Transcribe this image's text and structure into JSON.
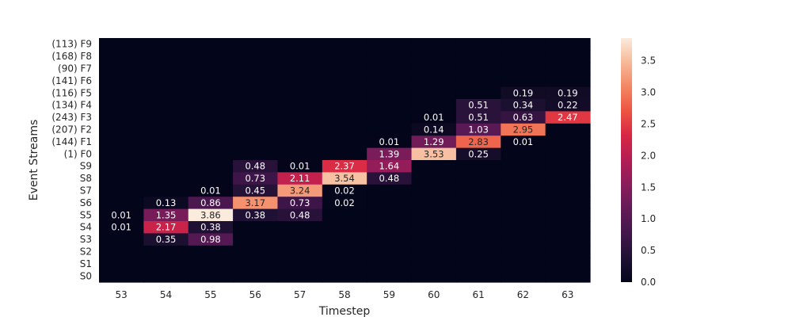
{
  "chart_data": {
    "type": "heatmap",
    "xlabel": "Timestep",
    "ylabel": "Event Streams",
    "x_categories": [
      "53",
      "54",
      "55",
      "56",
      "57",
      "58",
      "59",
      "60",
      "61",
      "62",
      "63"
    ],
    "y_categories": [
      "(113) F9",
      "(168) F8",
      "(90) F7",
      "(141) F6",
      "(116) F5",
      "(134) F4",
      "(243) F3",
      "(207) F2",
      "(144) F1",
      "(1) F0",
      "S9",
      "S8",
      "S7",
      "S6",
      "S5",
      "S4",
      "S3",
      "S2",
      "S1",
      "S0"
    ],
    "values": [
      [
        0,
        0,
        0,
        0,
        0,
        0,
        0,
        0,
        0,
        0,
        0
      ],
      [
        0,
        0,
        0,
        0,
        0,
        0,
        0,
        0,
        0,
        0,
        0
      ],
      [
        0,
        0,
        0,
        0,
        0,
        0,
        0,
        0,
        0,
        0,
        0
      ],
      [
        0,
        0,
        0,
        0,
        0,
        0,
        0,
        0,
        0,
        0,
        0
      ],
      [
        0,
        0,
        0,
        0,
        0,
        0,
        0,
        0,
        0,
        0.19,
        0.19
      ],
      [
        0,
        0,
        0,
        0,
        0,
        0,
        0,
        0,
        0.51,
        0.34,
        0.22
      ],
      [
        0,
        0,
        0,
        0,
        0,
        0,
        0,
        0.01,
        0.51,
        0.63,
        2.47
      ],
      [
        0,
        0,
        0,
        0,
        0,
        0,
        0,
        0.14,
        1.03,
        2.95,
        0
      ],
      [
        0,
        0,
        0,
        0,
        0,
        0,
        0.01,
        1.29,
        2.83,
        0.01,
        0
      ],
      [
        0,
        0,
        0,
        0,
        0,
        0,
        1.39,
        3.53,
        0.25,
        0,
        0
      ],
      [
        0,
        0,
        0,
        0.48,
        0.01,
        2.37,
        1.64,
        0,
        0,
        0,
        0
      ],
      [
        0,
        0,
        0,
        0.73,
        2.11,
        3.54,
        0.48,
        0,
        0,
        0,
        0
      ],
      [
        0,
        0,
        0.01,
        0.45,
        3.24,
        0.02,
        0,
        0,
        0,
        0,
        0
      ],
      [
        0,
        0.13,
        0.86,
        3.17,
        0.73,
        0.02,
        0,
        0,
        0,
        0,
        0
      ],
      [
        0.01,
        1.35,
        3.86,
        0.38,
        0.48,
        0,
        0,
        0,
        0,
        0,
        0
      ],
      [
        0.01,
        2.17,
        0.38,
        0,
        0,
        0,
        0,
        0,
        0,
        0,
        0
      ],
      [
        0,
        0.35,
        0.98,
        0,
        0,
        0,
        0,
        0,
        0,
        0,
        0
      ],
      [
        0,
        0,
        0,
        0,
        0,
        0,
        0,
        0,
        0,
        0,
        0
      ],
      [
        0,
        0,
        0,
        0,
        0,
        0,
        0,
        0,
        0,
        0,
        0
      ],
      [
        0,
        0,
        0,
        0,
        0,
        0,
        0,
        0,
        0,
        0,
        0
      ]
    ],
    "colorbar": {
      "min": 0,
      "max": 3.86,
      "ticks": [
        "0.0",
        "0.5",
        "1.0",
        "1.5",
        "2.0",
        "2.5",
        "3.0",
        "3.5"
      ],
      "colormap": "rocket"
    },
    "annotate_nonzero_only": true
  }
}
